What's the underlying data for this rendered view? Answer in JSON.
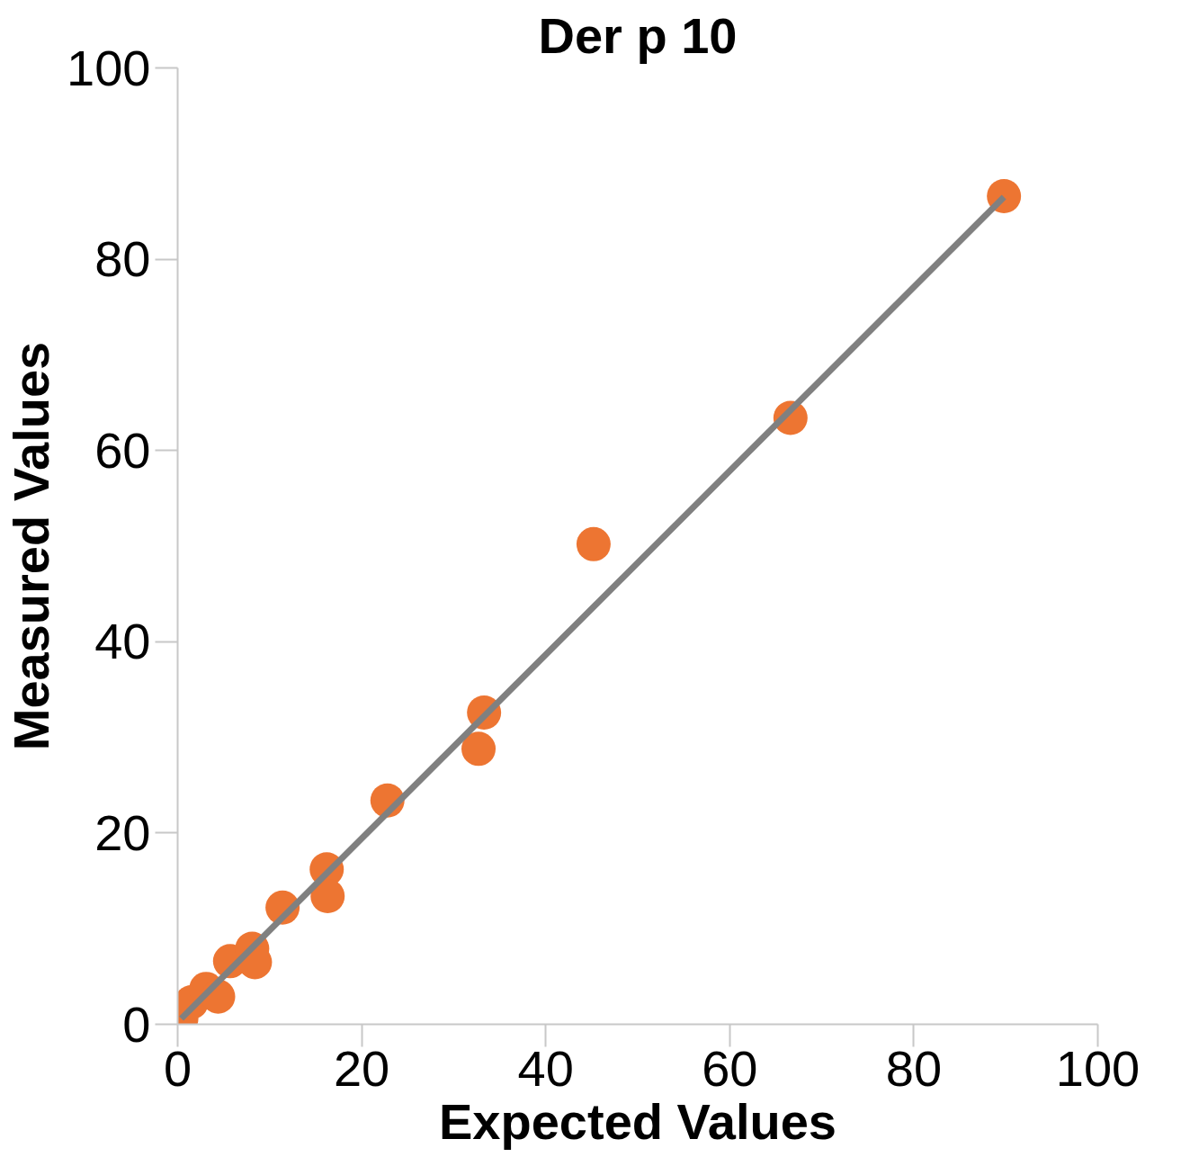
{
  "chart_data": {
    "type": "scatter",
    "title": "Der p 10",
    "xlabel": "Expected Values",
    "ylabel": "Measured Values",
    "xlim": [
      0,
      100
    ],
    "ylim": [
      0,
      100
    ],
    "xticks": [
      0,
      20,
      40,
      60,
      80,
      100
    ],
    "yticks": [
      0,
      20,
      40,
      60,
      80,
      100
    ],
    "grid": false,
    "marker": "circle",
    "series": [
      {
        "color": "#ed7532",
        "x": [
          0.4,
          1.5,
          3.1,
          4.4,
          5.7,
          8.1,
          8.4,
          11.4,
          16.2,
          16.3,
          22.8,
          32.7,
          33.3,
          45.2,
          66.6,
          89.8
        ],
        "values": [
          0.6,
          2.3,
          3.7,
          2.9,
          6.6,
          7.9,
          6.5,
          12.2,
          16.2,
          13.4,
          23.4,
          28.8,
          32.6,
          50.2,
          63.4,
          86.6
        ]
      },
      {
        "type": "line",
        "color": "#808080",
        "x": [
          0.4,
          89.8
        ],
        "values": [
          0.6,
          86.5
        ],
        "line_style": "solid",
        "marker": "none"
      }
    ]
  }
}
